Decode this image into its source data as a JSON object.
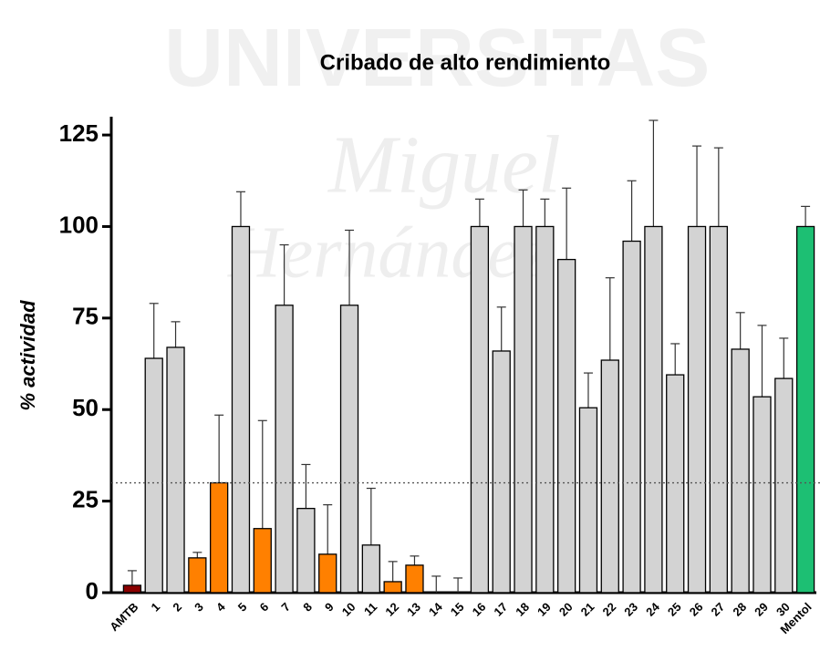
{
  "chart_data": {
    "type": "bar",
    "title": "Cribado de alto rendimiento",
    "ylabel": "% actividad",
    "watermark": [
      "UNIVERSITAS",
      "Miguel",
      "Hernández"
    ],
    "categories": [
      "AMTB",
      "1",
      "2",
      "3",
      "4",
      "5",
      "6",
      "7",
      "8",
      "9",
      "10",
      "11",
      "12",
      "13",
      "14",
      "15",
      "16",
      "17",
      "18",
      "19",
      "20",
      "21",
      "22",
      "23",
      "24",
      "25",
      "26",
      "27",
      "28",
      "29",
      "30",
      "Mentol"
    ],
    "values": [
      2,
      64,
      67,
      9.5,
      30,
      100,
      17.5,
      78.5,
      23,
      10.5,
      78.5,
      13,
      3,
      7.5,
      0,
      0,
      100,
      66,
      100,
      100,
      91,
      50.5,
      63.5,
      96,
      100,
      59.5,
      100,
      100,
      66.5,
      53.5,
      58.5,
      100
    ],
    "errors": [
      4,
      15,
      7,
      1.5,
      18.5,
      9.5,
      29.5,
      16.5,
      12,
      13.5,
      20.5,
      15.5,
      5.5,
      2.5,
      4.5,
      4,
      7.5,
      12,
      10,
      7.5,
      19.5,
      9.5,
      22.5,
      16.5,
      29,
      8.5,
      22,
      21.5,
      10,
      19.5,
      11,
      5.5
    ],
    "colors": [
      "#8b0000",
      "#d3d3d3",
      "#d3d3d3",
      "#ff8000",
      "#ff8000",
      "#d3d3d3",
      "#ff8000",
      "#d3d3d3",
      "#d3d3d3",
      "#ff8000",
      "#d3d3d3",
      "#d3d3d3",
      "#ff8000",
      "#ff8000",
      "#d3d3d3",
      "#d3d3d3",
      "#d3d3d3",
      "#d3d3d3",
      "#d3d3d3",
      "#d3d3d3",
      "#d3d3d3",
      "#d3d3d3",
      "#d3d3d3",
      "#d3d3d3",
      "#d3d3d3",
      "#d3d3d3",
      "#d3d3d3",
      "#d3d3d3",
      "#d3d3d3",
      "#d3d3d3",
      "#d3d3d3",
      "#1dbf73"
    ],
    "threshold": 30,
    "ylim": [
      0,
      130
    ],
    "yticks": [
      0,
      25,
      50,
      75,
      100,
      125
    ],
    "grid": false
  }
}
